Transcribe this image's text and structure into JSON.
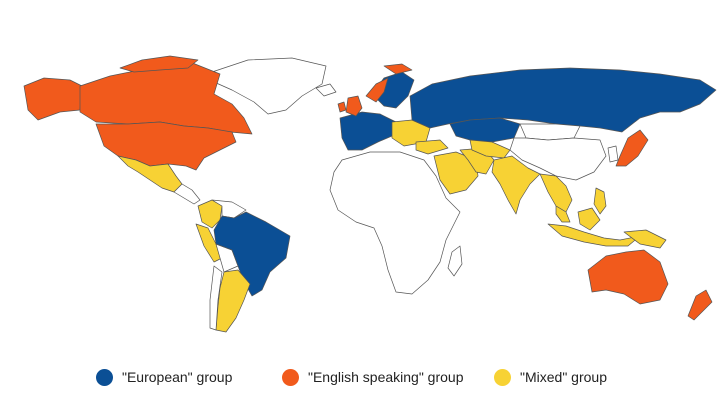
{
  "colors": {
    "european": "#0b4f95",
    "english": "#f15a1c",
    "mixed": "#f7d234",
    "unassigned": "#ffffff",
    "border": "#555555"
  },
  "legend": [
    {
      "id": "european",
      "label": "\"European\" group",
      "color": "#0b4f95"
    },
    {
      "id": "english",
      "label": "\"English speaking\" group",
      "color": "#f15a1c"
    },
    {
      "id": "mixed",
      "label": "\"Mixed\" group",
      "color": "#f7d234"
    }
  ]
}
